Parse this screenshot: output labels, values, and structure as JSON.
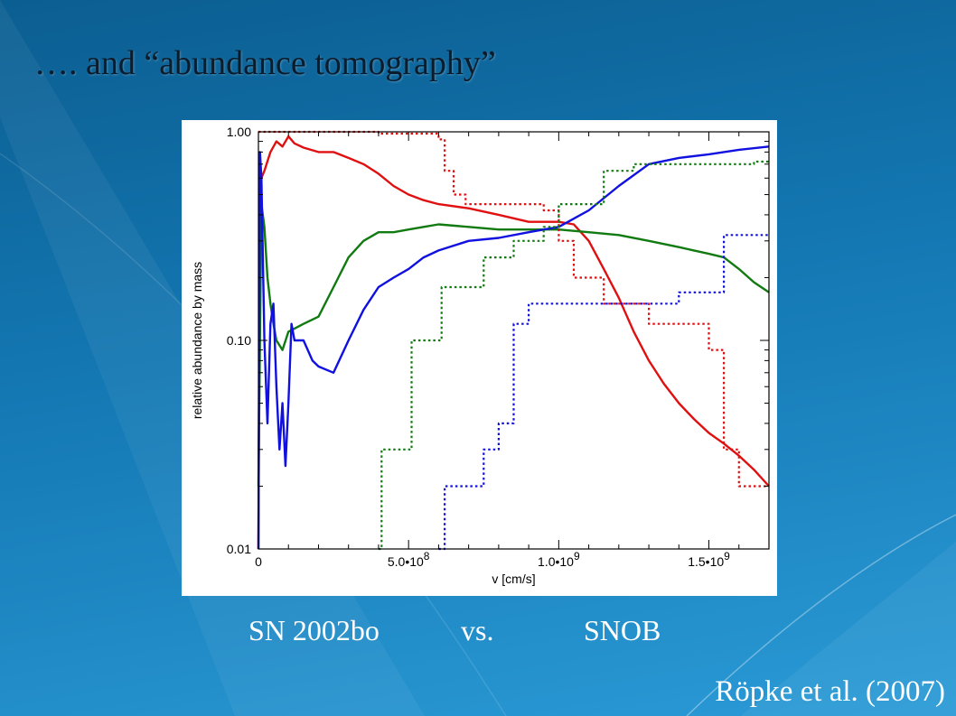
{
  "slide": {
    "title": "…. and “abundance tomography”",
    "caption_left": "SN 2002bo",
    "caption_mid": "vs.",
    "caption_right": "SNOB",
    "citation": "Röpke et al. (2007)"
  },
  "colors": {
    "background": "#1478b3",
    "red": "#e01010",
    "green": "#117a11",
    "blue": "#1010e0",
    "title": "#0b1c2c"
  },
  "chart_data": {
    "type": "line",
    "xlabel": "v [cm/s]",
    "ylabel": "relative abundance by mass",
    "xlim": [
      0,
      1700000000
    ],
    "ylim": [
      0.01,
      1.0
    ],
    "yscale": "log",
    "grid": false,
    "x_ticks": [
      {
        "value": 0,
        "base": "0",
        "exp": ""
      },
      {
        "value": 500000000,
        "base": "5.0•10",
        "exp": "8"
      },
      {
        "value": 1000000000,
        "base": "1.0•10",
        "exp": "9"
      },
      {
        "value": 1500000000,
        "base": "1.5•10",
        "exp": "9"
      }
    ],
    "y_ticks": [
      {
        "value": 0.01,
        "label": "0.01"
      },
      {
        "value": 0.1,
        "label": "0.10"
      },
      {
        "value": 1.0,
        "label": "1.00"
      }
    ],
    "series": [
      {
        "color": "red",
        "style": "solid",
        "points": [
          [
            0,
            0.01
          ],
          [
            5000000,
            0.5
          ],
          [
            10000000,
            0.6
          ],
          [
            20000000,
            0.65
          ],
          [
            40000000,
            0.8
          ],
          [
            60000000,
            0.9
          ],
          [
            80000000,
            0.85
          ],
          [
            100000000,
            0.95
          ],
          [
            120000000,
            0.88
          ],
          [
            150000000,
            0.84
          ],
          [
            200000000,
            0.8
          ],
          [
            250000000,
            0.8
          ],
          [
            300000000,
            0.75
          ],
          [
            350000000,
            0.7
          ],
          [
            400000000,
            0.63
          ],
          [
            450000000,
            0.55
          ],
          [
            500000000,
            0.5
          ],
          [
            550000000,
            0.47
          ],
          [
            600000000,
            0.45
          ],
          [
            700000000,
            0.43
          ],
          [
            800000000,
            0.4
          ],
          [
            900000000,
            0.37
          ],
          [
            1000000000,
            0.37
          ],
          [
            1050000000,
            0.36
          ],
          [
            1100000000,
            0.3
          ],
          [
            1150000000,
            0.22
          ],
          [
            1200000000,
            0.16
          ],
          [
            1250000000,
            0.11
          ],
          [
            1300000000,
            0.08
          ],
          [
            1350000000,
            0.062
          ],
          [
            1400000000,
            0.05
          ],
          [
            1450000000,
            0.042
          ],
          [
            1500000000,
            0.036
          ],
          [
            1550000000,
            0.032
          ],
          [
            1600000000,
            0.028
          ],
          [
            1650000000,
            0.024
          ],
          [
            1700000000,
            0.02
          ]
        ]
      },
      {
        "color": "green",
        "style": "solid",
        "points": [
          [
            0,
            0.02
          ],
          [
            10000000,
            0.45
          ],
          [
            20000000,
            0.35
          ],
          [
            30000000,
            0.2
          ],
          [
            40000000,
            0.15
          ],
          [
            50000000,
            0.12
          ],
          [
            60000000,
            0.1
          ],
          [
            80000000,
            0.09
          ],
          [
            100000000,
            0.11
          ],
          [
            150000000,
            0.12
          ],
          [
            200000000,
            0.13
          ],
          [
            250000000,
            0.18
          ],
          [
            300000000,
            0.25
          ],
          [
            350000000,
            0.3
          ],
          [
            400000000,
            0.33
          ],
          [
            450000000,
            0.33
          ],
          [
            500000000,
            0.34
          ],
          [
            550000000,
            0.35
          ],
          [
            600000000,
            0.36
          ],
          [
            700000000,
            0.35
          ],
          [
            800000000,
            0.34
          ],
          [
            900000000,
            0.34
          ],
          [
            1000000000,
            0.34
          ],
          [
            1100000000,
            0.33
          ],
          [
            1200000000,
            0.32
          ],
          [
            1300000000,
            0.3
          ],
          [
            1400000000,
            0.28
          ],
          [
            1500000000,
            0.26
          ],
          [
            1550000000,
            0.25
          ],
          [
            1600000000,
            0.22
          ],
          [
            1650000000,
            0.19
          ],
          [
            1700000000,
            0.17
          ]
        ]
      },
      {
        "color": "blue",
        "style": "solid",
        "points": [
          [
            0,
            0.01
          ],
          [
            5000000,
            0.8
          ],
          [
            10000000,
            0.6
          ],
          [
            20000000,
            0.1
          ],
          [
            30000000,
            0.04
          ],
          [
            40000000,
            0.12
          ],
          [
            50000000,
            0.15
          ],
          [
            60000000,
            0.06
          ],
          [
            70000000,
            0.03
          ],
          [
            80000000,
            0.05
          ],
          [
            90000000,
            0.025
          ],
          [
            100000000,
            0.05
          ],
          [
            110000000,
            0.12
          ],
          [
            120000000,
            0.1
          ],
          [
            150000000,
            0.1
          ],
          [
            180000000,
            0.08
          ],
          [
            200000000,
            0.075
          ],
          [
            250000000,
            0.07
          ],
          [
            300000000,
            0.1
          ],
          [
            350000000,
            0.14
          ],
          [
            400000000,
            0.18
          ],
          [
            450000000,
            0.2
          ],
          [
            500000000,
            0.22
          ],
          [
            550000000,
            0.25
          ],
          [
            600000000,
            0.27
          ],
          [
            700000000,
            0.3
          ],
          [
            800000000,
            0.31
          ],
          [
            900000000,
            0.33
          ],
          [
            1000000000,
            0.35
          ],
          [
            1100000000,
            0.42
          ],
          [
            1200000000,
            0.55
          ],
          [
            1300000000,
            0.7
          ],
          [
            1400000000,
            0.75
          ],
          [
            1500000000,
            0.78
          ],
          [
            1600000000,
            0.82
          ],
          [
            1700000000,
            0.85
          ]
        ]
      },
      {
        "color": "red",
        "style": "dotted",
        "points": [
          [
            0,
            1.0
          ],
          [
            400000000,
            1.0
          ],
          [
            400000000,
            0.98
          ],
          [
            600000000,
            0.98
          ],
          [
            600000000,
            0.92
          ],
          [
            620000000,
            0.92
          ],
          [
            620000000,
            0.65
          ],
          [
            650000000,
            0.65
          ],
          [
            650000000,
            0.5
          ],
          [
            690000000,
            0.5
          ],
          [
            690000000,
            0.45
          ],
          [
            950000000,
            0.45
          ],
          [
            950000000,
            0.42
          ],
          [
            1000000000,
            0.42
          ],
          [
            1000000000,
            0.3
          ],
          [
            1050000000,
            0.3
          ],
          [
            1050000000,
            0.2
          ],
          [
            1150000000,
            0.2
          ],
          [
            1150000000,
            0.15
          ],
          [
            1300000000,
            0.15
          ],
          [
            1300000000,
            0.12
          ],
          [
            1500000000,
            0.12
          ],
          [
            1500000000,
            0.09
          ],
          [
            1550000000,
            0.09
          ],
          [
            1550000000,
            0.03
          ],
          [
            1600000000,
            0.03
          ],
          [
            1600000000,
            0.02
          ],
          [
            1700000000,
            0.02
          ]
        ]
      },
      {
        "color": "green",
        "style": "dotted",
        "points": [
          [
            400000000,
            0.01
          ],
          [
            410000000,
            0.01
          ],
          [
            410000000,
            0.03
          ],
          [
            510000000,
            0.03
          ],
          [
            510000000,
            0.1
          ],
          [
            610000000,
            0.1
          ],
          [
            610000000,
            0.18
          ],
          [
            750000000,
            0.18
          ],
          [
            750000000,
            0.25
          ],
          [
            850000000,
            0.25
          ],
          [
            850000000,
            0.3
          ],
          [
            950000000,
            0.3
          ],
          [
            950000000,
            0.35
          ],
          [
            1000000000,
            0.35
          ],
          [
            1000000000,
            0.45
          ],
          [
            1150000000,
            0.45
          ],
          [
            1150000000,
            0.65
          ],
          [
            1250000000,
            0.65
          ],
          [
            1250000000,
            0.7
          ],
          [
            1650000000,
            0.7
          ],
          [
            1650000000,
            0.72
          ],
          [
            1700000000,
            0.72
          ]
        ]
      },
      {
        "color": "blue",
        "style": "dotted",
        "points": [
          [
            600000000,
            0.01
          ],
          [
            620000000,
            0.01
          ],
          [
            620000000,
            0.02
          ],
          [
            750000000,
            0.02
          ],
          [
            750000000,
            0.03
          ],
          [
            800000000,
            0.03
          ],
          [
            800000000,
            0.04
          ],
          [
            850000000,
            0.04
          ],
          [
            850000000,
            0.12
          ],
          [
            900000000,
            0.12
          ],
          [
            900000000,
            0.15
          ],
          [
            1400000000,
            0.15
          ],
          [
            1400000000,
            0.17
          ],
          [
            1550000000,
            0.17
          ],
          [
            1550000000,
            0.32
          ],
          [
            1700000000,
            0.32
          ]
        ]
      }
    ]
  }
}
